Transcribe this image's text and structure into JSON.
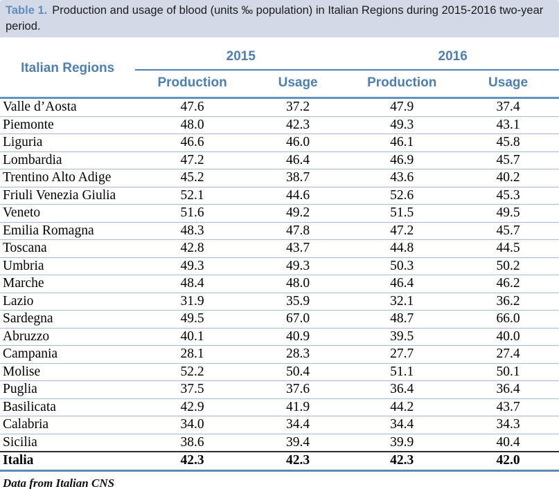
{
  "caption": {
    "label": "Table 1.",
    "text": "Production and usage of blood (units ‰ population) in Italian Regions during 2015-2016 two-year period."
  },
  "table": {
    "region_header": "Italian Regions",
    "year_headers": [
      "2015",
      "2016"
    ],
    "sub_headers": [
      "Production",
      "Usage",
      "Production",
      "Usage"
    ],
    "rows": [
      {
        "region": "Valle d’Aosta",
        "values": [
          "47.6",
          "37.2",
          "47.9",
          "37.4"
        ]
      },
      {
        "region": "Piemonte",
        "values": [
          "48.0",
          "42.3",
          "49.3",
          "43.1"
        ]
      },
      {
        "region": "Liguria",
        "values": [
          "46.6",
          "46.0",
          "46.1",
          "45.8"
        ]
      },
      {
        "region": "Lombardia",
        "values": [
          "47.2",
          "46.4",
          "46.9",
          "45.7"
        ]
      },
      {
        "region": "Trentino Alto Adige",
        "values": [
          "45.2",
          "38.7",
          "43.6",
          "40.2"
        ]
      },
      {
        "region": "Friuli Venezia Giulia",
        "values": [
          "52.1",
          "44.6",
          "52.6",
          "45.3"
        ]
      },
      {
        "region": "Veneto",
        "values": [
          "51.6",
          "49.2",
          "51.5",
          "49.5"
        ]
      },
      {
        "region": "Emilia Romagna",
        "values": [
          "48.3",
          "47.8",
          "47.2",
          "45.7"
        ]
      },
      {
        "region": "Toscana",
        "values": [
          "42.8",
          "43.7",
          "44.8",
          "44.5"
        ]
      },
      {
        "region": "Umbria",
        "values": [
          "49.3",
          "49.3",
          "50.3",
          "50.2"
        ]
      },
      {
        "region": "Marche",
        "values": [
          "48.4",
          "48.0",
          "46.4",
          "46.2"
        ]
      },
      {
        "region": "Lazio",
        "values": [
          "31.9",
          "35.9",
          "32.1",
          "36.2"
        ]
      },
      {
        "region": "Sardegna",
        "values": [
          "49.5",
          "67.0",
          "48.7",
          "66.0"
        ]
      },
      {
        "region": "Abruzzo",
        "values": [
          "40.1",
          "40.9",
          "39.5",
          "40.0"
        ]
      },
      {
        "region": "Campania",
        "values": [
          "28.1",
          "28.3",
          "27.7",
          "27.4"
        ]
      },
      {
        "region": "Molise",
        "values": [
          "52.2",
          "50.4",
          "51.1",
          "50.1"
        ]
      },
      {
        "region": "Puglia",
        "values": [
          "37.5",
          "37.6",
          "36.4",
          "36.4"
        ]
      },
      {
        "region": "Basilicata",
        "values": [
          "42.9",
          "41.9",
          "44.2",
          "43.7"
        ]
      },
      {
        "region": "Calabria",
        "values": [
          "34.0",
          "34.4",
          "34.4",
          "34.3"
        ]
      },
      {
        "region": "Sicilia",
        "values": [
          "38.6",
          "39.4",
          "39.9",
          "40.4"
        ]
      }
    ],
    "total_row": {
      "region": "Italia",
      "values": [
        "42.3",
        "42.3",
        "42.3",
        "42.0"
      ]
    }
  },
  "footer": {
    "source": "Data from Italian CNS"
  },
  "colors": {
    "caption_background": "#d4d9e7",
    "header_text_blue": "#4d7eb4",
    "rule_blue": "#6690c0",
    "row_separator_blue": "#a3bedb",
    "total_top_rule_dark": "#2b2b2b",
    "body_text": "#000000"
  },
  "chart_data": {
    "type": "table",
    "title": "Production and usage of blood (units ‰ population) in Italian Regions during 2015-2016 two-year period.",
    "columns": [
      "Italian Regions",
      "2015 Production",
      "2015 Usage",
      "2016 Production",
      "2016 Usage"
    ],
    "series": [
      {
        "name": "2015 Production",
        "values": [
          47.6,
          48.0,
          46.6,
          47.2,
          45.2,
          52.1,
          51.6,
          48.3,
          42.8,
          49.3,
          48.4,
          31.9,
          49.5,
          40.1,
          28.1,
          52.2,
          37.5,
          42.9,
          34.0,
          38.6,
          42.3
        ]
      },
      {
        "name": "2015 Usage",
        "values": [
          37.2,
          42.3,
          46.0,
          46.4,
          38.7,
          44.6,
          49.2,
          47.8,
          43.7,
          49.3,
          48.0,
          35.9,
          67.0,
          40.9,
          28.3,
          50.4,
          37.6,
          41.9,
          34.4,
          39.4,
          42.3
        ]
      },
      {
        "name": "2016 Production",
        "values": [
          47.9,
          49.3,
          46.1,
          46.9,
          43.6,
          52.6,
          51.5,
          47.2,
          44.8,
          50.3,
          46.4,
          32.1,
          48.7,
          39.5,
          27.7,
          51.1,
          36.4,
          44.2,
          34.4,
          39.9,
          42.3
        ]
      },
      {
        "name": "2016 Usage",
        "values": [
          37.4,
          43.1,
          45.8,
          45.7,
          40.2,
          45.3,
          49.5,
          45.7,
          44.5,
          50.2,
          46.2,
          36.2,
          66.0,
          40.0,
          27.4,
          50.1,
          36.4,
          43.7,
          34.3,
          40.4,
          42.0
        ]
      }
    ],
    "categories": [
      "Valle d’Aosta",
      "Piemonte",
      "Liguria",
      "Lombardia",
      "Trentino Alto Adige",
      "Friuli Venezia Giulia",
      "Veneto",
      "Emilia Romagna",
      "Toscana",
      "Umbria",
      "Marche",
      "Lazio",
      "Sardegna",
      "Abruzzo",
      "Campania",
      "Molise",
      "Puglia",
      "Basilicata",
      "Calabria",
      "Sicilia",
      "Italia"
    ]
  }
}
